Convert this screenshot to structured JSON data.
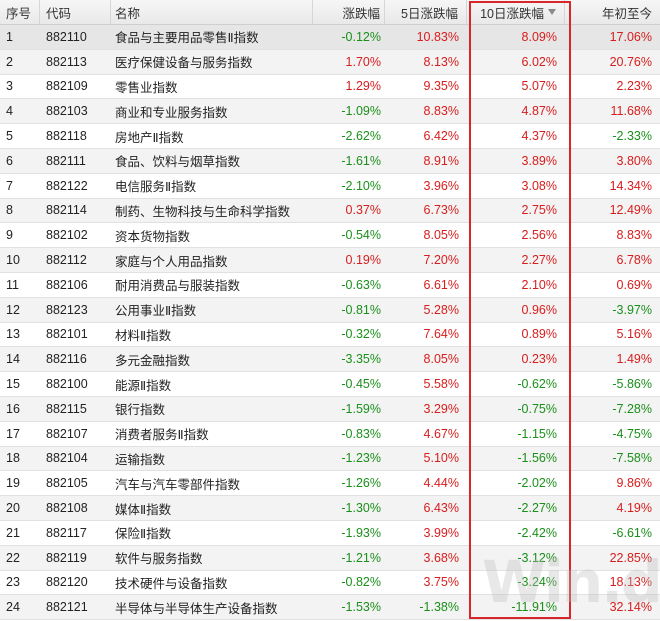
{
  "columns": {
    "idx": "序号",
    "code": "代码",
    "name": "名称",
    "chg": "涨跌幅",
    "chg5d": "5日涨跌幅",
    "chg10d": "10日涨跌幅",
    "ytd": "年初至今"
  },
  "sorted_column": "chg10d",
  "sort_direction": "descending",
  "colors": {
    "up": "#d81d1d",
    "down": "#1a8f1a",
    "highlight": "#d8262a"
  },
  "rows": [
    {
      "idx": "1",
      "code": "882110",
      "name": "食品与主要用品零售Ⅱ指数",
      "chg": "-0.12%",
      "chg5d": "10.83%",
      "chg10d": "8.09%",
      "ytd": "17.06%"
    },
    {
      "idx": "2",
      "code": "882113",
      "name": "医疗保健设备与服务指数",
      "chg": "1.70%",
      "chg5d": "8.13%",
      "chg10d": "6.02%",
      "ytd": "20.76%"
    },
    {
      "idx": "3",
      "code": "882109",
      "name": "零售业指数",
      "chg": "1.29%",
      "chg5d": "9.35%",
      "chg10d": "5.07%",
      "ytd": "2.23%"
    },
    {
      "idx": "4",
      "code": "882103",
      "name": "商业和专业服务指数",
      "chg": "-1.09%",
      "chg5d": "8.83%",
      "chg10d": "4.87%",
      "ytd": "11.68%"
    },
    {
      "idx": "5",
      "code": "882118",
      "name": "房地产Ⅱ指数",
      "chg": "-2.62%",
      "chg5d": "6.42%",
      "chg10d": "4.37%",
      "ytd": "-2.33%"
    },
    {
      "idx": "6",
      "code": "882111",
      "name": "食品、饮料与烟草指数",
      "chg": "-1.61%",
      "chg5d": "8.91%",
      "chg10d": "3.89%",
      "ytd": "3.80%"
    },
    {
      "idx": "7",
      "code": "882122",
      "name": "电信服务Ⅱ指数",
      "chg": "-2.10%",
      "chg5d": "3.96%",
      "chg10d": "3.08%",
      "ytd": "14.34%"
    },
    {
      "idx": "8",
      "code": "882114",
      "name": "制药、生物科技与生命科学指数",
      "chg": "0.37%",
      "chg5d": "6.73%",
      "chg10d": "2.75%",
      "ytd": "12.49%"
    },
    {
      "idx": "9",
      "code": "882102",
      "name": "资本货物指数",
      "chg": "-0.54%",
      "chg5d": "8.05%",
      "chg10d": "2.56%",
      "ytd": "8.83%"
    },
    {
      "idx": "10",
      "code": "882112",
      "name": "家庭与个人用品指数",
      "chg": "0.19%",
      "chg5d": "7.20%",
      "chg10d": "2.27%",
      "ytd": "6.78%"
    },
    {
      "idx": "11",
      "code": "882106",
      "name": "耐用消费品与服装指数",
      "chg": "-0.63%",
      "chg5d": "6.61%",
      "chg10d": "2.10%",
      "ytd": "0.69%"
    },
    {
      "idx": "12",
      "code": "882123",
      "name": "公用事业Ⅱ指数",
      "chg": "-0.81%",
      "chg5d": "5.28%",
      "chg10d": "0.96%",
      "ytd": "-3.97%"
    },
    {
      "idx": "13",
      "code": "882101",
      "name": "材料Ⅱ指数",
      "chg": "-0.32%",
      "chg5d": "7.64%",
      "chg10d": "0.89%",
      "ytd": "5.16%"
    },
    {
      "idx": "14",
      "code": "882116",
      "name": "多元金融指数",
      "chg": "-3.35%",
      "chg5d": "8.05%",
      "chg10d": "0.23%",
      "ytd": "1.49%"
    },
    {
      "idx": "15",
      "code": "882100",
      "name": "能源Ⅱ指数",
      "chg": "-0.45%",
      "chg5d": "5.58%",
      "chg10d": "-0.62%",
      "ytd": "-5.86%"
    },
    {
      "idx": "16",
      "code": "882115",
      "name": "银行指数",
      "chg": "-1.59%",
      "chg5d": "3.29%",
      "chg10d": "-0.75%",
      "ytd": "-7.28%"
    },
    {
      "idx": "17",
      "code": "882107",
      "name": "消费者服务Ⅱ指数",
      "chg": "-0.83%",
      "chg5d": "4.67%",
      "chg10d": "-1.15%",
      "ytd": "-4.75%"
    },
    {
      "idx": "18",
      "code": "882104",
      "name": "运输指数",
      "chg": "-1.23%",
      "chg5d": "5.10%",
      "chg10d": "-1.56%",
      "ytd": "-7.58%"
    },
    {
      "idx": "19",
      "code": "882105",
      "name": "汽车与汽车零部件指数",
      "chg": "-1.26%",
      "chg5d": "4.44%",
      "chg10d": "-2.02%",
      "ytd": "9.86%"
    },
    {
      "idx": "20",
      "code": "882108",
      "name": "媒体Ⅱ指数",
      "chg": "-1.30%",
      "chg5d": "6.43%",
      "chg10d": "-2.27%",
      "ytd": "4.19%"
    },
    {
      "idx": "21",
      "code": "882117",
      "name": "保险Ⅱ指数",
      "chg": "-1.93%",
      "chg5d": "3.99%",
      "chg10d": "-2.42%",
      "ytd": "-6.61%"
    },
    {
      "idx": "22",
      "code": "882119",
      "name": "软件与服务指数",
      "chg": "-1.21%",
      "chg5d": "3.68%",
      "chg10d": "-3.12%",
      "ytd": "22.85%"
    },
    {
      "idx": "23",
      "code": "882120",
      "name": "技术硬件与设备指数",
      "chg": "-0.82%",
      "chg5d": "3.75%",
      "chg10d": "-3.24%",
      "ytd": "18.13%"
    },
    {
      "idx": "24",
      "code": "882121",
      "name": "半导体与半导体生产设备指数",
      "chg": "-1.53%",
      "chg5d": "-1.38%",
      "chg10d": "-11.91%",
      "ytd": "32.14%"
    }
  ],
  "watermark": "Win.d"
}
